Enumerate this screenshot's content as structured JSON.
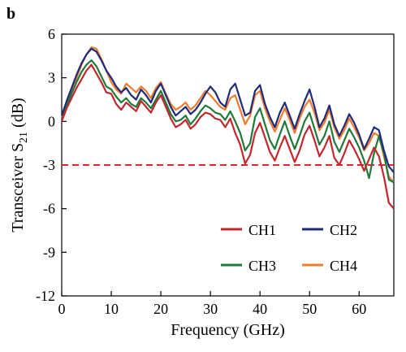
{
  "panel_label": "b",
  "colors": {
    "CH1": "#c1272d",
    "CH2": "#1f2b7a",
    "CH3": "#1f7a3a",
    "CH4": "#f07d2e",
    "threshold": "#e3262b"
  },
  "chart_data": {
    "type": "line",
    "xlabel": "Frequency (GHz)",
    "ylabel_main": "Transceiver S",
    "ylabel_sub": "21",
    "ylabel_unit": " (dB)",
    "xlim": [
      0,
      67
    ],
    "ylim": [
      -12,
      6
    ],
    "xticks": [
      0,
      10,
      20,
      30,
      40,
      50,
      60
    ],
    "yticks": [
      6,
      3,
      0,
      -3,
      -6,
      -9,
      -12
    ],
    "grid": false,
    "legend_position": "bottom-right",
    "threshold": {
      "y": -3,
      "style": "dashed"
    },
    "x": [
      0,
      1,
      2,
      3,
      4,
      5,
      6,
      7,
      8,
      9,
      10,
      11,
      12,
      13,
      14,
      15,
      16,
      17,
      18,
      19,
      20,
      21,
      22,
      23,
      24,
      25,
      26,
      27,
      28,
      29,
      30,
      31,
      32,
      33,
      34,
      35,
      36,
      37,
      38,
      39,
      40,
      41,
      42,
      43,
      44,
      45,
      46,
      47,
      48,
      49,
      50,
      51,
      52,
      53,
      54,
      55,
      56,
      57,
      58,
      59,
      60,
      61,
      62,
      63,
      64,
      65,
      66,
      67
    ],
    "series": [
      {
        "name": "CH1",
        "values": [
          0.0,
          0.9,
          1.6,
          2.3,
          2.9,
          3.5,
          3.9,
          3.3,
          2.7,
          2.0,
          1.9,
          1.2,
          0.8,
          1.3,
          1.0,
          0.7,
          1.4,
          1.0,
          0.6,
          1.3,
          1.8,
          1.0,
          0.2,
          -0.4,
          -0.2,
          0.1,
          -0.5,
          -0.2,
          0.3,
          0.6,
          0.5,
          0.2,
          0.1,
          -0.4,
          0.2,
          -0.8,
          -1.6,
          -2.9,
          -2.3,
          -0.8,
          -0.1,
          -1.1,
          -2.1,
          -2.7,
          -1.8,
          -1.0,
          -1.9,
          -2.8,
          -2.0,
          -0.9,
          -0.3,
          -1.3,
          -2.4,
          -1.8,
          -1.0,
          -2.5,
          -3.0,
          -2.2,
          -1.3,
          -1.9,
          -2.6,
          -3.4,
          -2.6,
          -1.8,
          -2.4,
          -3.8,
          -5.6,
          -6.0
        ]
      },
      {
        "name": "CH2",
        "values": [
          0.4,
          1.4,
          2.3,
          3.2,
          4.0,
          4.6,
          5.0,
          4.8,
          4.2,
          3.5,
          3.0,
          2.4,
          2.0,
          2.3,
          1.8,
          1.5,
          2.2,
          1.8,
          1.3,
          2.1,
          2.6,
          1.8,
          1.0,
          0.4,
          0.7,
          1.0,
          0.5,
          0.8,
          1.3,
          1.9,
          2.4,
          2.0,
          1.3,
          1.0,
          2.2,
          2.6,
          1.5,
          0.4,
          0.6,
          2.1,
          2.5,
          1.2,
          0.3,
          -0.4,
          0.6,
          1.3,
          0.4,
          -0.5,
          0.5,
          1.4,
          2.2,
          1.0,
          -0.4,
          0.2,
          1.1,
          -0.2,
          -1.0,
          -0.3,
          0.5,
          -0.1,
          -0.9,
          -1.9,
          -1.2,
          -0.4,
          -0.6,
          -2.0,
          -3.1,
          -3.5
        ]
      },
      {
        "name": "CH3",
        "values": [
          0.1,
          1.1,
          1.9,
          2.7,
          3.4,
          3.9,
          4.2,
          3.8,
          3.1,
          2.4,
          2.2,
          1.7,
          1.3,
          1.6,
          1.2,
          1.0,
          1.6,
          1.3,
          0.9,
          1.5,
          2.1,
          1.3,
          0.5,
          0.0,
          0.1,
          0.4,
          -0.2,
          0.2,
          0.7,
          1.1,
          0.9,
          0.6,
          0.5,
          0.1,
          0.7,
          0.0,
          -0.8,
          -2.0,
          -1.5,
          0.3,
          0.9,
          -0.2,
          -1.3,
          -1.9,
          -0.9,
          0.0,
          -1.0,
          -1.9,
          -1.0,
          0.0,
          0.6,
          -0.5,
          -1.6,
          -1.0,
          0.0,
          -1.4,
          -2.1,
          -1.3,
          -0.5,
          -1.1,
          -1.8,
          -2.7,
          -3.9,
          -2.2,
          -1.0,
          -2.2,
          -4.0,
          -4.2
        ]
      },
      {
        "name": "CH4",
        "values": [
          0.3,
          1.3,
          2.1,
          3.0,
          3.9,
          4.6,
          5.1,
          5.0,
          4.3,
          3.5,
          2.7,
          2.2,
          1.9,
          2.6,
          2.3,
          2.0,
          2.4,
          2.1,
          1.6,
          2.3,
          2.7,
          1.9,
          1.2,
          0.8,
          1.0,
          1.3,
          0.8,
          1.1,
          1.6,
          2.1,
          1.8,
          1.4,
          1.0,
          0.8,
          1.6,
          1.8,
          0.8,
          -0.2,
          0.4,
          1.8,
          2.1,
          0.9,
          0.0,
          -0.7,
          0.1,
          0.9,
          0.1,
          -0.8,
          0.2,
          1.0,
          1.5,
          0.6,
          -0.6,
          -0.1,
          0.8,
          -0.4,
          -1.2,
          -0.6,
          0.2,
          -0.4,
          -1.1,
          -2.0,
          -1.5,
          -0.8,
          -1.0,
          -2.4,
          -3.8,
          -4.2
        ]
      }
    ]
  }
}
